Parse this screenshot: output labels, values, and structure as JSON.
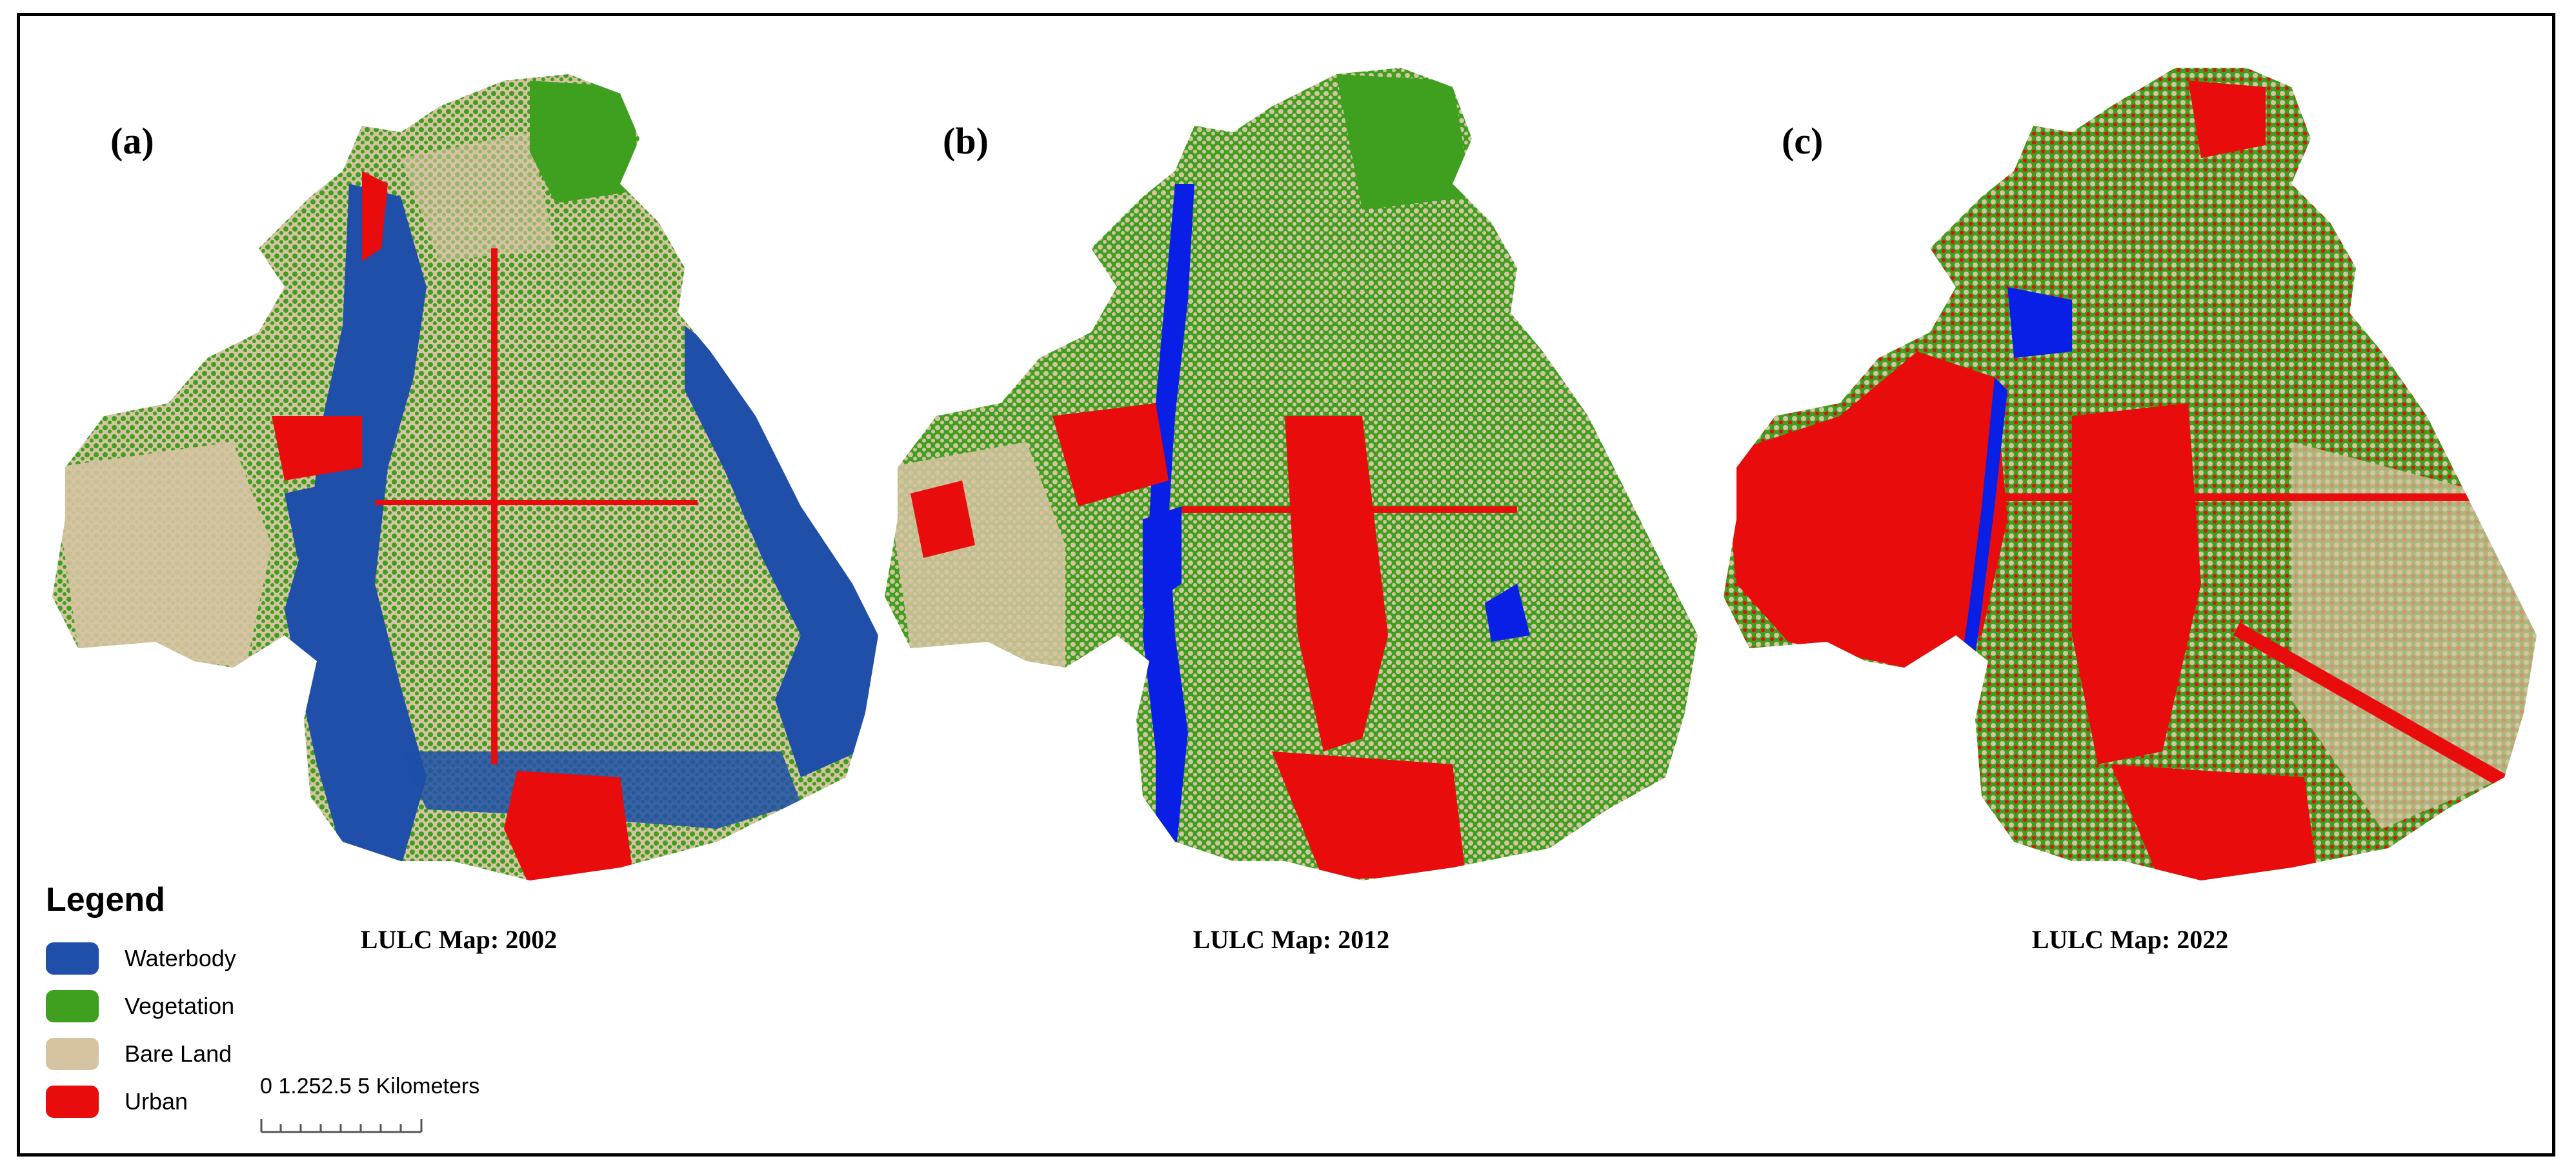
{
  "colors": {
    "waterbody": "#1f4fa8",
    "vegetation": "#3ea01e",
    "bare_land": "#d6c3a1",
    "urban": "#e80c0c",
    "water_2012": "#0a1fe6"
  },
  "panels": [
    {
      "label": "(a)",
      "title": "LULC Map: 2002"
    },
    {
      "label": "(b)",
      "title": "LULC Map: 2012"
    },
    {
      "label": "(c)",
      "title": "LULC Map: 2022"
    }
  ],
  "legend": {
    "title": "Legend",
    "items": [
      {
        "label": "Waterbody",
        "color": "#1f4fa8"
      },
      {
        "label": "Vegetation",
        "color": "#3ea01e"
      },
      {
        "label": "Bare Land",
        "color": "#d6c3a1"
      },
      {
        "label": "Urban",
        "color": "#e80c0c"
      }
    ]
  },
  "scalebar": {
    "label": "0  1.252.5        5 Kilometers"
  }
}
